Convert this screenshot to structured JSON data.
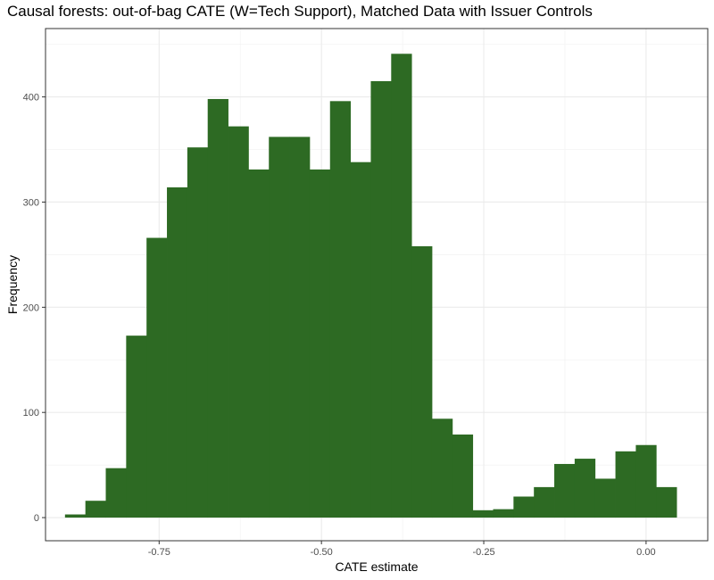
{
  "chart_data": {
    "type": "bar",
    "title": "Causal forests: out-of-bag CATE (W=Tech Support), Matched Data with Issuer Controls",
    "xlabel": "CATE estimate",
    "ylabel": "Frequency",
    "xlim": [
      -0.925,
      0.095
    ],
    "ylim": [
      -22,
      465
    ],
    "x_ticks": [
      -0.75,
      -0.5,
      -0.25,
      0.0
    ],
    "x_tick_labels": [
      "-0.75",
      "-0.50",
      "-0.25",
      "0.00"
    ],
    "y_ticks": [
      0,
      100,
      200,
      300,
      400
    ],
    "y_tick_labels": [
      "0",
      "100",
      "200",
      "300",
      "400"
    ],
    "bin_width": 0.0314,
    "bin_starts": [
      -0.895,
      -0.8636,
      -0.8322,
      -0.8008,
      -0.7694,
      -0.738,
      -0.7066,
      -0.6752,
      -0.6438,
      -0.6124,
      -0.581,
      -0.5496,
      -0.5182,
      -0.4868,
      -0.4554,
      -0.424,
      -0.3926,
      -0.3612,
      -0.3298,
      -0.2984,
      -0.267,
      -0.2356,
      -0.2042,
      -0.1728,
      -0.1414,
      -0.11,
      -0.0786,
      -0.0472,
      -0.0158,
      0.0156
    ],
    "values": [
      3,
      16,
      47,
      173,
      266,
      314,
      352,
      398,
      372,
      331,
      362,
      362,
      331,
      396,
      338,
      415,
      441,
      258,
      94,
      79,
      7,
      8,
      20,
      29,
      51,
      56,
      37,
      63,
      69,
      29
    ],
    "bar_color": "#2d6a23",
    "grid": true,
    "legend": "none"
  }
}
